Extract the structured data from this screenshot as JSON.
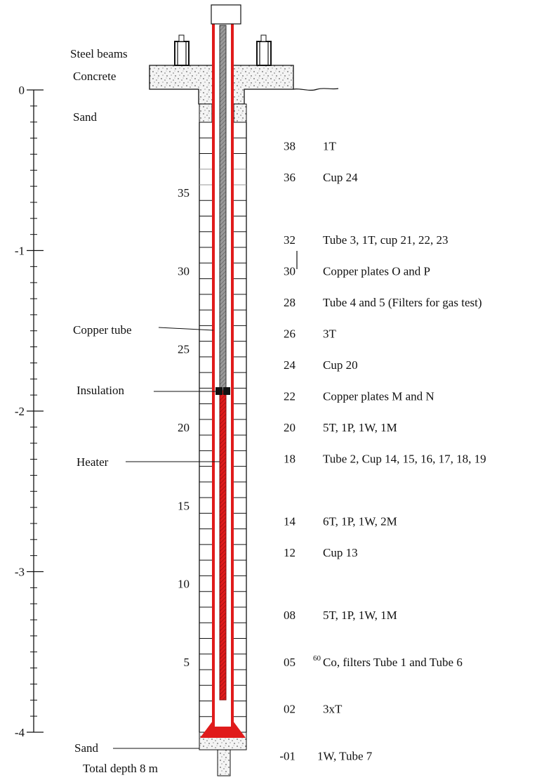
{
  "colors": {
    "ink": "#111111",
    "heater_red": "#e01b1b",
    "concrete_fill": "#f4f4f4",
    "copper_tube": "#888888"
  },
  "scale_labels": [
    "0",
    "-1",
    "-2",
    "-3",
    "-4"
  ],
  "blocks": {
    "count": 39,
    "numbers": [
      "35",
      "30",
      "25",
      "20",
      "15",
      "10",
      "5"
    ]
  },
  "labels": {
    "steel_beams": "Steel beams",
    "concrete": "Concrete",
    "sand_top": "Sand",
    "copper_tube": "Copper tube",
    "insulation": "Insulation",
    "heater": "Heater",
    "sand_bottom": "Sand",
    "total_depth": "Total depth 8 m"
  },
  "instrument_rows": [
    {
      "block": "38",
      "desc": "1T"
    },
    {
      "block": "36",
      "desc": "Cup 24"
    },
    {
      "block": "32",
      "desc": "Tube 3, 1T, cup 21, 22, 23"
    },
    {
      "block": "30",
      "desc": "Copper plates O and P"
    },
    {
      "block": "28",
      "desc": "Tube 4 and 5 (Filters for gas test)"
    },
    {
      "block": "26",
      "desc": "3T"
    },
    {
      "block": "24",
      "desc": "Cup 20"
    },
    {
      "block": "22",
      "desc": "Copper plates M and N"
    },
    {
      "block": "20",
      "desc": "5T, 1P, 1W, 1M"
    },
    {
      "block": "18",
      "desc": "Tube 2, Cup 14, 15, 16, 17, 18, 19"
    },
    {
      "block": "14",
      "desc": "6T, 1P, 1W, 2M"
    },
    {
      "block": "12",
      "desc": "Cup 13"
    },
    {
      "block": "08",
      "desc": "5T, 1P, 1W, 1M"
    },
    {
      "block": "05",
      "desc_sup": "60",
      "desc": "Co, filters Tube 1 and Tube 6"
    },
    {
      "block": "02",
      "desc": "3xT"
    },
    {
      "block": "-01",
      "desc": "1W, Tube 7"
    }
  ]
}
